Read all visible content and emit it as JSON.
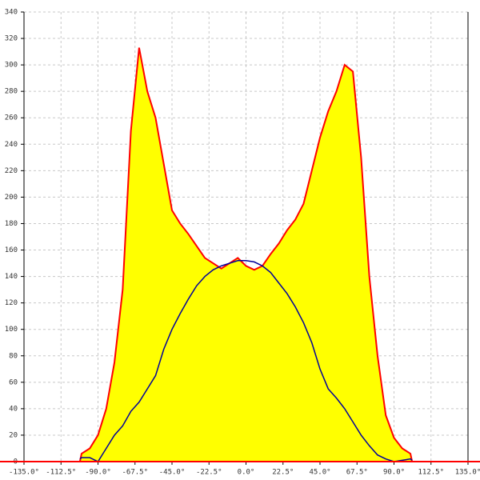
{
  "chart_data": {
    "type": "area",
    "x": [
      -101,
      -100,
      -95,
      -90,
      -85,
      -80,
      -75,
      -70,
      -65,
      -60,
      -55,
      -50,
      -45,
      -40,
      -35,
      -30,
      -25,
      -20,
      -15,
      -10,
      -5,
      0,
      5,
      10,
      15,
      20,
      25,
      30,
      35,
      40,
      45,
      50,
      55,
      60,
      65,
      70,
      75,
      80,
      85,
      90,
      95,
      100,
      101
    ],
    "series": [
      {
        "kind": "area",
        "color": "#ff0000",
        "fill": "#ffff00",
        "values": [
          0,
          6,
          10,
          20,
          40,
          75,
          130,
          250,
          313,
          280,
          260,
          225,
          190,
          180,
          172,
          163,
          154,
          150,
          146,
          150,
          154,
          148,
          145,
          148,
          157,
          165,
          175,
          183,
          195,
          220,
          245,
          265,
          280,
          300,
          295,
          230,
          140,
          80,
          35,
          18,
          10,
          6,
          0
        ]
      },
      {
        "kind": "line",
        "color": "#000099",
        "values": [
          2,
          3,
          3,
          0,
          10,
          20,
          27,
          38,
          45,
          55,
          65,
          85,
          100,
          112,
          123,
          133,
          140,
          145,
          148,
          150,
          152,
          152,
          151,
          148,
          143,
          135,
          127,
          117,
          105,
          90,
          70,
          55,
          48,
          40,
          30,
          20,
          12,
          5,
          2,
          0,
          1,
          2,
          1
        ]
      }
    ],
    "xlim": [
      -135,
      135
    ],
    "xticks": [
      {
        "value": -135,
        "label": "-135.0°"
      },
      {
        "value": -112.5,
        "label": "-112.5°"
      },
      {
        "value": -90,
        "label": "-90.0°"
      },
      {
        "value": -67.5,
        "label": "-67.5°"
      },
      {
        "value": -45,
        "label": "-45.0°"
      },
      {
        "value": -22.5,
        "label": "-22.5°"
      },
      {
        "value": 0,
        "label": "0.0°"
      },
      {
        "value": 22.5,
        "label": "22.5°"
      },
      {
        "value": 45,
        "label": "45.0°"
      },
      {
        "value": 67.5,
        "label": "67.5°"
      },
      {
        "value": 90,
        "label": "90.0°"
      },
      {
        "value": 112.5,
        "label": "112.5°"
      },
      {
        "value": 135,
        "label": "135.0°"
      }
    ],
    "ylim": [
      0,
      340
    ],
    "yticks": [
      0,
      20,
      40,
      60,
      80,
      100,
      120,
      140,
      160,
      180,
      200,
      220,
      240,
      260,
      280,
      300,
      320,
      340
    ],
    "grid": true
  }
}
